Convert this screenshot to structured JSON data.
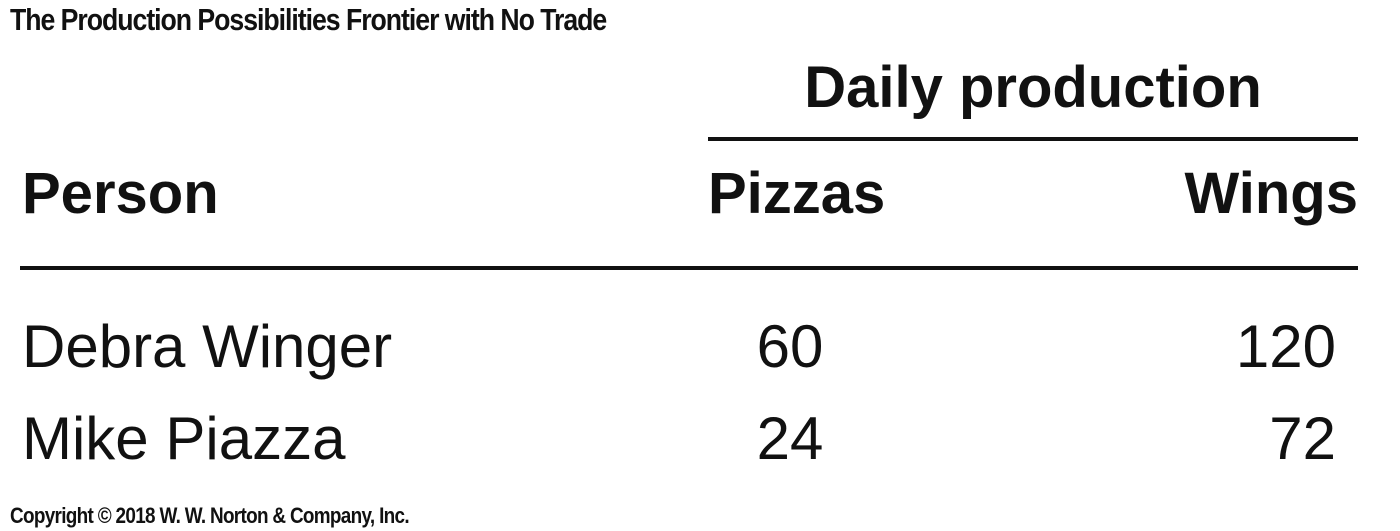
{
  "title": "The Production Possibilities Frontier with No Trade",
  "table": {
    "group_header": "Daily production",
    "columns": {
      "person": "Person",
      "pizzas": "Pizzas",
      "wings": "Wings"
    },
    "rows": [
      {
        "person": "Debra Winger",
        "pizzas": "60",
        "wings": "120"
      },
      {
        "person": "Mike Piazza",
        "pizzas": "24",
        "wings": "72"
      }
    ]
  },
  "copyright": "Copyright © 2018 W. W. Norton & Company, Inc."
}
